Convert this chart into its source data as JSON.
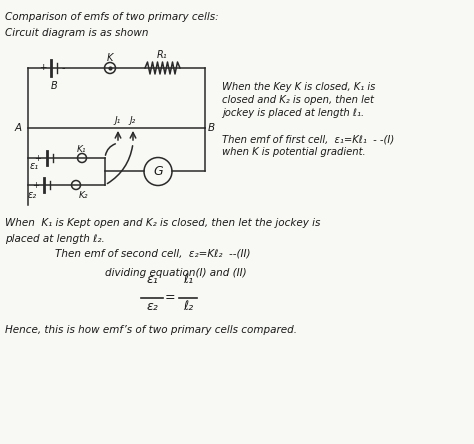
{
  "background_color": "#f8f8f4",
  "text_color": "#1a1a1a",
  "diagram_color": "#2a2a2a",
  "title": "Comparison of emfs of two primary cells:",
  "subtitle": "Circuit diagram is as shown",
  "right_text_lines": [
    "When the Key K is closed, K₁ is",
    "closed and K₂ is open, then let",
    "jockey is placed at length ℓ₁.",
    "",
    "Then emf of first cell,  ε₁=Kℓ₁  - -(I)",
    "when K is potential gradient."
  ],
  "bottom1": "When  K₁ is Kept open and K₂ is closed, then let the jockey is",
  "bottom2": "placed at length ℓ₂.",
  "bottom3": "Then emf of second cell,  ε₂=Kℓ₂  --(II)",
  "bottom4": "dividing equation(I) and (II)",
  "bottom6": "Hence, this is how emf’s of two primary cells compared."
}
